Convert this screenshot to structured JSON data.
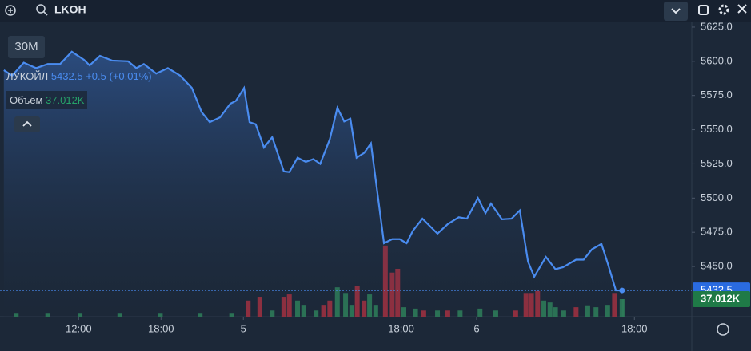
{
  "toolbar": {
    "ticker": "LKOH"
  },
  "interval": "30M",
  "legend": {
    "name": "ЛУКОЙЛ",
    "price": 5432.5,
    "change": "+0.5",
    "change_pct": "(+0.01%)",
    "volume_name": "Объём",
    "volume": "37.012K"
  },
  "chart_data": {
    "type": "area",
    "xlim": [
      -1.46,
      99.36
    ],
    "xticks": [
      {
        "value": 10,
        "label": "12:00"
      },
      {
        "value": 22,
        "label": "18:00"
      },
      {
        "value": 34,
        "label": "5"
      },
      {
        "value": 57,
        "label": "18:00"
      },
      {
        "value": 68,
        "label": "6"
      },
      {
        "value": 91,
        "label": "18:00"
      }
    ],
    "ylim": [
      5413.3,
      5644.8
    ],
    "yticks": [
      {
        "value": 5625,
        "label": "5625.0"
      },
      {
        "value": 5600,
        "label": "5600.0"
      },
      {
        "value": 5575,
        "label": "5575.0"
      },
      {
        "value": 5550,
        "label": "5550.0"
      },
      {
        "value": 5525,
        "label": "5525.0"
      },
      {
        "value": 5500,
        "label": "5500.0"
      },
      {
        "value": 5475,
        "label": "5475.0"
      },
      {
        "value": 5450,
        "label": "5450.0"
      }
    ],
    "y2lim": [
      0,
      668
    ],
    "series": [
      {
        "color": "#4a8cf0",
        "x": [
          -0.9,
          0.3,
          2,
          3.8,
          5.5,
          7.3,
          9,
          10.8,
          11.6,
          13.1,
          14.9,
          17.2,
          18.4,
          19.5,
          21.3,
          23,
          24.8,
          26.5,
          27.9,
          29.1,
          30.6,
          32.1,
          32.9,
          34.1,
          34.9,
          35.8,
          37,
          38.2,
          39.9,
          40.7,
          41.9,
          43.1,
          44.2,
          45.2,
          46.6,
          47.7,
          48.7,
          49.6,
          50.5,
          51.6,
          52.6,
          54.5,
          55.7,
          56.8,
          57.8,
          58.7,
          60.1,
          62.3,
          63.8,
          65.4,
          66.6,
          68.2,
          69.3,
          70.1,
          71.7,
          73.1,
          74.3,
          75.5,
          76.4,
          78.1,
          79.5,
          80.6,
          82.5,
          83.6,
          84.8,
          86.2,
          87.1,
          88.3,
          89.2
        ],
        "values": [
          5593.5,
          5589.5,
          5599,
          5595,
          5598,
          5598,
          5607,
          5601,
          5597,
          5604,
          5600.5,
          5600,
          5595,
          5598,
          5591,
          5595,
          5589.5,
          5580.5,
          5563,
          5555.5,
          5559,
          5569,
          5571,
          5580.5,
          5555.5,
          5554,
          5537,
          5544.5,
          5519.5,
          5519,
          5529.5,
          5526.5,
          5528.5,
          5525,
          5543,
          5566,
          5556,
          5558,
          5529.5,
          5533,
          5540,
          5467,
          5470,
          5470,
          5467,
          5476,
          5485,
          5474,
          5481,
          5486,
          5485,
          5500,
          5489,
          5496,
          5484.5,
          5485,
          5491,
          5453.5,
          5442.5,
          5457,
          5448,
          5449.5,
          5455,
          5455,
          5462.5,
          5466.5,
          5452.5,
          5432.5,
          5432.5
        ]
      },
      {
        "type": "bar",
        "axis": "y2",
        "x": [
          0.9,
          5.5,
          10.2,
          16,
          21.9,
          27.7,
          32.3,
          34.7,
          36.4,
          38.2,
          39.9,
          40.7,
          41.9,
          42.8,
          44.6,
          45.7,
          46.6,
          47.7,
          48.9,
          49.8,
          50.6,
          51.6,
          52.4,
          53.3,
          54.7,
          55.7,
          56.5,
          57.4,
          59.1,
          60.3,
          62.3,
          63.8,
          65.6,
          68.5,
          70.8,
          73.7,
          75.2,
          76,
          76.9,
          77.8,
          78.7,
          79.5,
          80.7,
          82.5,
          84.2,
          85.4,
          87.1,
          88.1,
          89.2
        ],
        "values": [
          8,
          8,
          8,
          8,
          8,
          8,
          8,
          34,
          42,
          13,
          42,
          47,
          34,
          25,
          13,
          25,
          34,
          62,
          50,
          25,
          64,
          34,
          47,
          25,
          150,
          93,
          101,
          20,
          17,
          13,
          13,
          13,
          13,
          17,
          13,
          13,
          50,
          50,
          54,
          34,
          30,
          20,
          13,
          20,
          24,
          20,
          25,
          50,
          37.012
        ],
        "colors": [
          "#2d7a58",
          "#2d7a58",
          "#2d7a58",
          "#2d7a58",
          "#2d7a58",
          "#2d7a58",
          "#2d7a58",
          "#9b3040",
          "#9b3040",
          "#2d7a58",
          "#9b3040",
          "#9b3040",
          "#2d7a58",
          "#2d7a58",
          "#2d7a58",
          "#9b3040",
          "#9b3040",
          "#2d7a58",
          "#2d7a58",
          "#2d7a58",
          "#9b3040",
          "#9b3040",
          "#2d7a58",
          "#2d7a58",
          "#9b3040",
          "#9b3040",
          "#9b3040",
          "#2d7a58",
          "#2d7a58",
          "#9b3040",
          "#2d7a58",
          "#9b3040",
          "#2d7a58",
          "#2d7a58",
          "#2d7a58",
          "#9b3040",
          "#9b3040",
          "#9b3040",
          "#9b3040",
          "#2d7a58",
          "#2d7a58",
          "#2d7a58",
          "#2d7a58",
          "#9b3040",
          "#2d7a58",
          "#2d7a58",
          "#2d7a58",
          "#9b3040",
          "#2d7a58"
        ]
      }
    ]
  }
}
